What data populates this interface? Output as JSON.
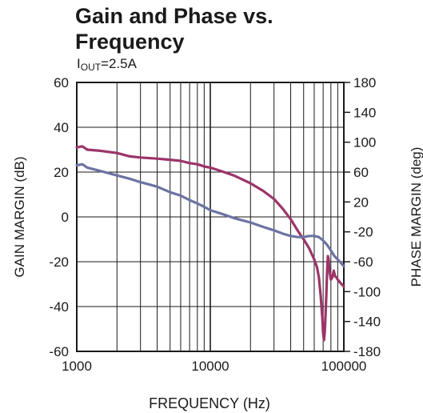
{
  "chart_data": {
    "type": "line",
    "title_line1": "Gain and Phase vs.",
    "title_line2": "Frequency",
    "subtitle_main": "I",
    "subtitle_sub": "OUT",
    "subtitle_rest": "=2.5A",
    "xlabel": "FREQUENCY (Hz)",
    "ylabel_left": "GAIN MARGIN (dB)",
    "ylabel_right": "PHASE MARGIN (deg)",
    "x_scale": "log",
    "xlim": [
      1000,
      100000
    ],
    "ylim_left": [
      -60,
      60
    ],
    "ylim_right": [
      -180,
      180
    ],
    "x_ticks": [
      1000,
      10000,
      100000
    ],
    "x_tick_labels": [
      "1000",
      "10000",
      "100000"
    ],
    "y_left_ticks": [
      60,
      40,
      20,
      0,
      -20,
      -40,
      -60
    ],
    "y_left_tick_labels": [
      "60",
      "40",
      "20",
      "0",
      "-20",
      "-40",
      "-60"
    ],
    "y_right_ticks": [
      180,
      140,
      100,
      60,
      20,
      -20,
      -60,
      -100,
      -140,
      -180
    ],
    "y_right_tick_labels": [
      "180",
      "140",
      "100",
      "60",
      "20",
      "-20",
      "-60",
      "-100",
      "-140",
      "-180"
    ],
    "grid": true,
    "series": [
      {
        "axis": "left",
        "color": "#9b3569",
        "points": [
          [
            1000,
            31
          ],
          [
            1100,
            31.5
          ],
          [
            1200,
            30
          ],
          [
            1500,
            29.5
          ],
          [
            2000,
            28.5
          ],
          [
            2500,
            27
          ],
          [
            3000,
            26.5
          ],
          [
            4000,
            26
          ],
          [
            5000,
            25.5
          ],
          [
            6000,
            25
          ],
          [
            7000,
            24
          ],
          [
            8000,
            23.5
          ],
          [
            9000,
            22.5
          ],
          [
            10000,
            22
          ],
          [
            12000,
            20.5
          ],
          [
            15000,
            18.5
          ],
          [
            20000,
            15
          ],
          [
            25000,
            11.5
          ],
          [
            30000,
            8
          ],
          [
            35000,
            3.5
          ],
          [
            40000,
            -1
          ],
          [
            45000,
            -6
          ],
          [
            50000,
            -10
          ],
          [
            55000,
            -14
          ],
          [
            60000,
            -19
          ],
          [
            63000,
            -22.5
          ],
          [
            65000,
            -27
          ],
          [
            67000,
            -35
          ],
          [
            69000,
            -45
          ],
          [
            70000,
            -52
          ],
          [
            71000,
            -55
          ],
          [
            72000,
            -51
          ],
          [
            73000,
            -43
          ],
          [
            74000,
            -34
          ],
          [
            75000,
            -24
          ],
          [
            76000,
            -17.5
          ],
          [
            77000,
            -19
          ],
          [
            78000,
            -24
          ],
          [
            80000,
            -28
          ],
          [
            82000,
            -27
          ],
          [
            84000,
            -24
          ],
          [
            86000,
            -26.5
          ],
          [
            88000,
            -27
          ],
          [
            90000,
            -28
          ],
          [
            93000,
            -29
          ],
          [
            96000,
            -30
          ],
          [
            100000,
            -31
          ]
        ]
      },
      {
        "axis": "left",
        "color": "#6c73a2",
        "points": [
          [
            1000,
            23
          ],
          [
            1100,
            23.5
          ],
          [
            1200,
            22
          ],
          [
            1500,
            20.5
          ],
          [
            2000,
            18.5
          ],
          [
            2500,
            17
          ],
          [
            3000,
            15.5
          ],
          [
            4000,
            13.5
          ],
          [
            5000,
            11
          ],
          [
            6000,
            9.5
          ],
          [
            7000,
            7.5
          ],
          [
            8000,
            6
          ],
          [
            9000,
            4.5
          ],
          [
            10000,
            3
          ],
          [
            12000,
            1.5
          ],
          [
            15000,
            -0.5
          ],
          [
            20000,
            -2.5
          ],
          [
            25000,
            -4.5
          ],
          [
            30000,
            -6
          ],
          [
            35000,
            -7.5
          ],
          [
            40000,
            -8.5
          ],
          [
            45000,
            -9
          ],
          [
            50000,
            -9
          ],
          [
            55000,
            -8.5
          ],
          [
            60000,
            -8.5
          ],
          [
            65000,
            -9
          ],
          [
            70000,
            -10.5
          ],
          [
            75000,
            -12.5
          ],
          [
            80000,
            -15
          ],
          [
            85000,
            -17.5
          ],
          [
            90000,
            -19
          ],
          [
            95000,
            -20.5
          ],
          [
            100000,
            -22
          ]
        ]
      }
    ]
  }
}
